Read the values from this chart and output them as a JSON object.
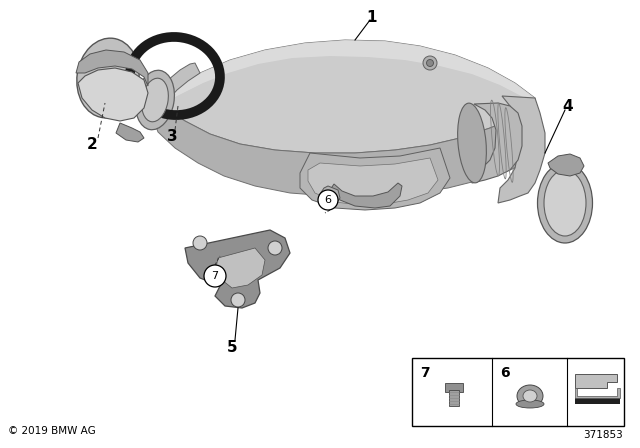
{
  "background_color": "#ffffff",
  "copyright_text": "© 2019 BMW AG",
  "part_number": "371853",
  "fig_width": 6.4,
  "fig_height": 4.48,
  "dpi": 100
}
